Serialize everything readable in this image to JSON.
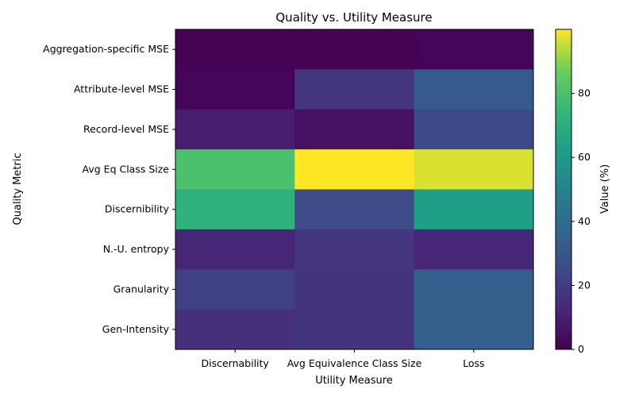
{
  "chart_data": {
    "type": "heatmap",
    "title": "Quality vs. Utility Measure",
    "xlabel": "Utility Measure",
    "ylabel": "Quality Metric",
    "x_categories": [
      "Discernability",
      "Avg Equivalence Class Size",
      "Loss"
    ],
    "y_categories": [
      "Aggregation-specific MSE",
      "Attribute-level MSE",
      "Record-level MSE",
      "Avg Eq Class Size",
      "Discernibility",
      "N.-U. entropy",
      "Granularity",
      "Gen-Intensity"
    ],
    "values": [
      [
        0.5,
        0.5,
        1
      ],
      [
        1,
        18,
        32
      ],
      [
        9,
        5,
        25
      ],
      [
        80,
        100,
        97
      ],
      [
        72,
        26,
        63
      ],
      [
        12,
        18,
        12
      ],
      [
        22,
        17,
        34
      ],
      [
        15,
        17,
        34
      ]
    ],
    "colorbar": {
      "label": "Value (%)",
      "range": [
        0,
        100
      ],
      "ticks": [
        "0",
        "20",
        "40",
        "60",
        "80"
      ],
      "colormap": "viridis"
    }
  }
}
